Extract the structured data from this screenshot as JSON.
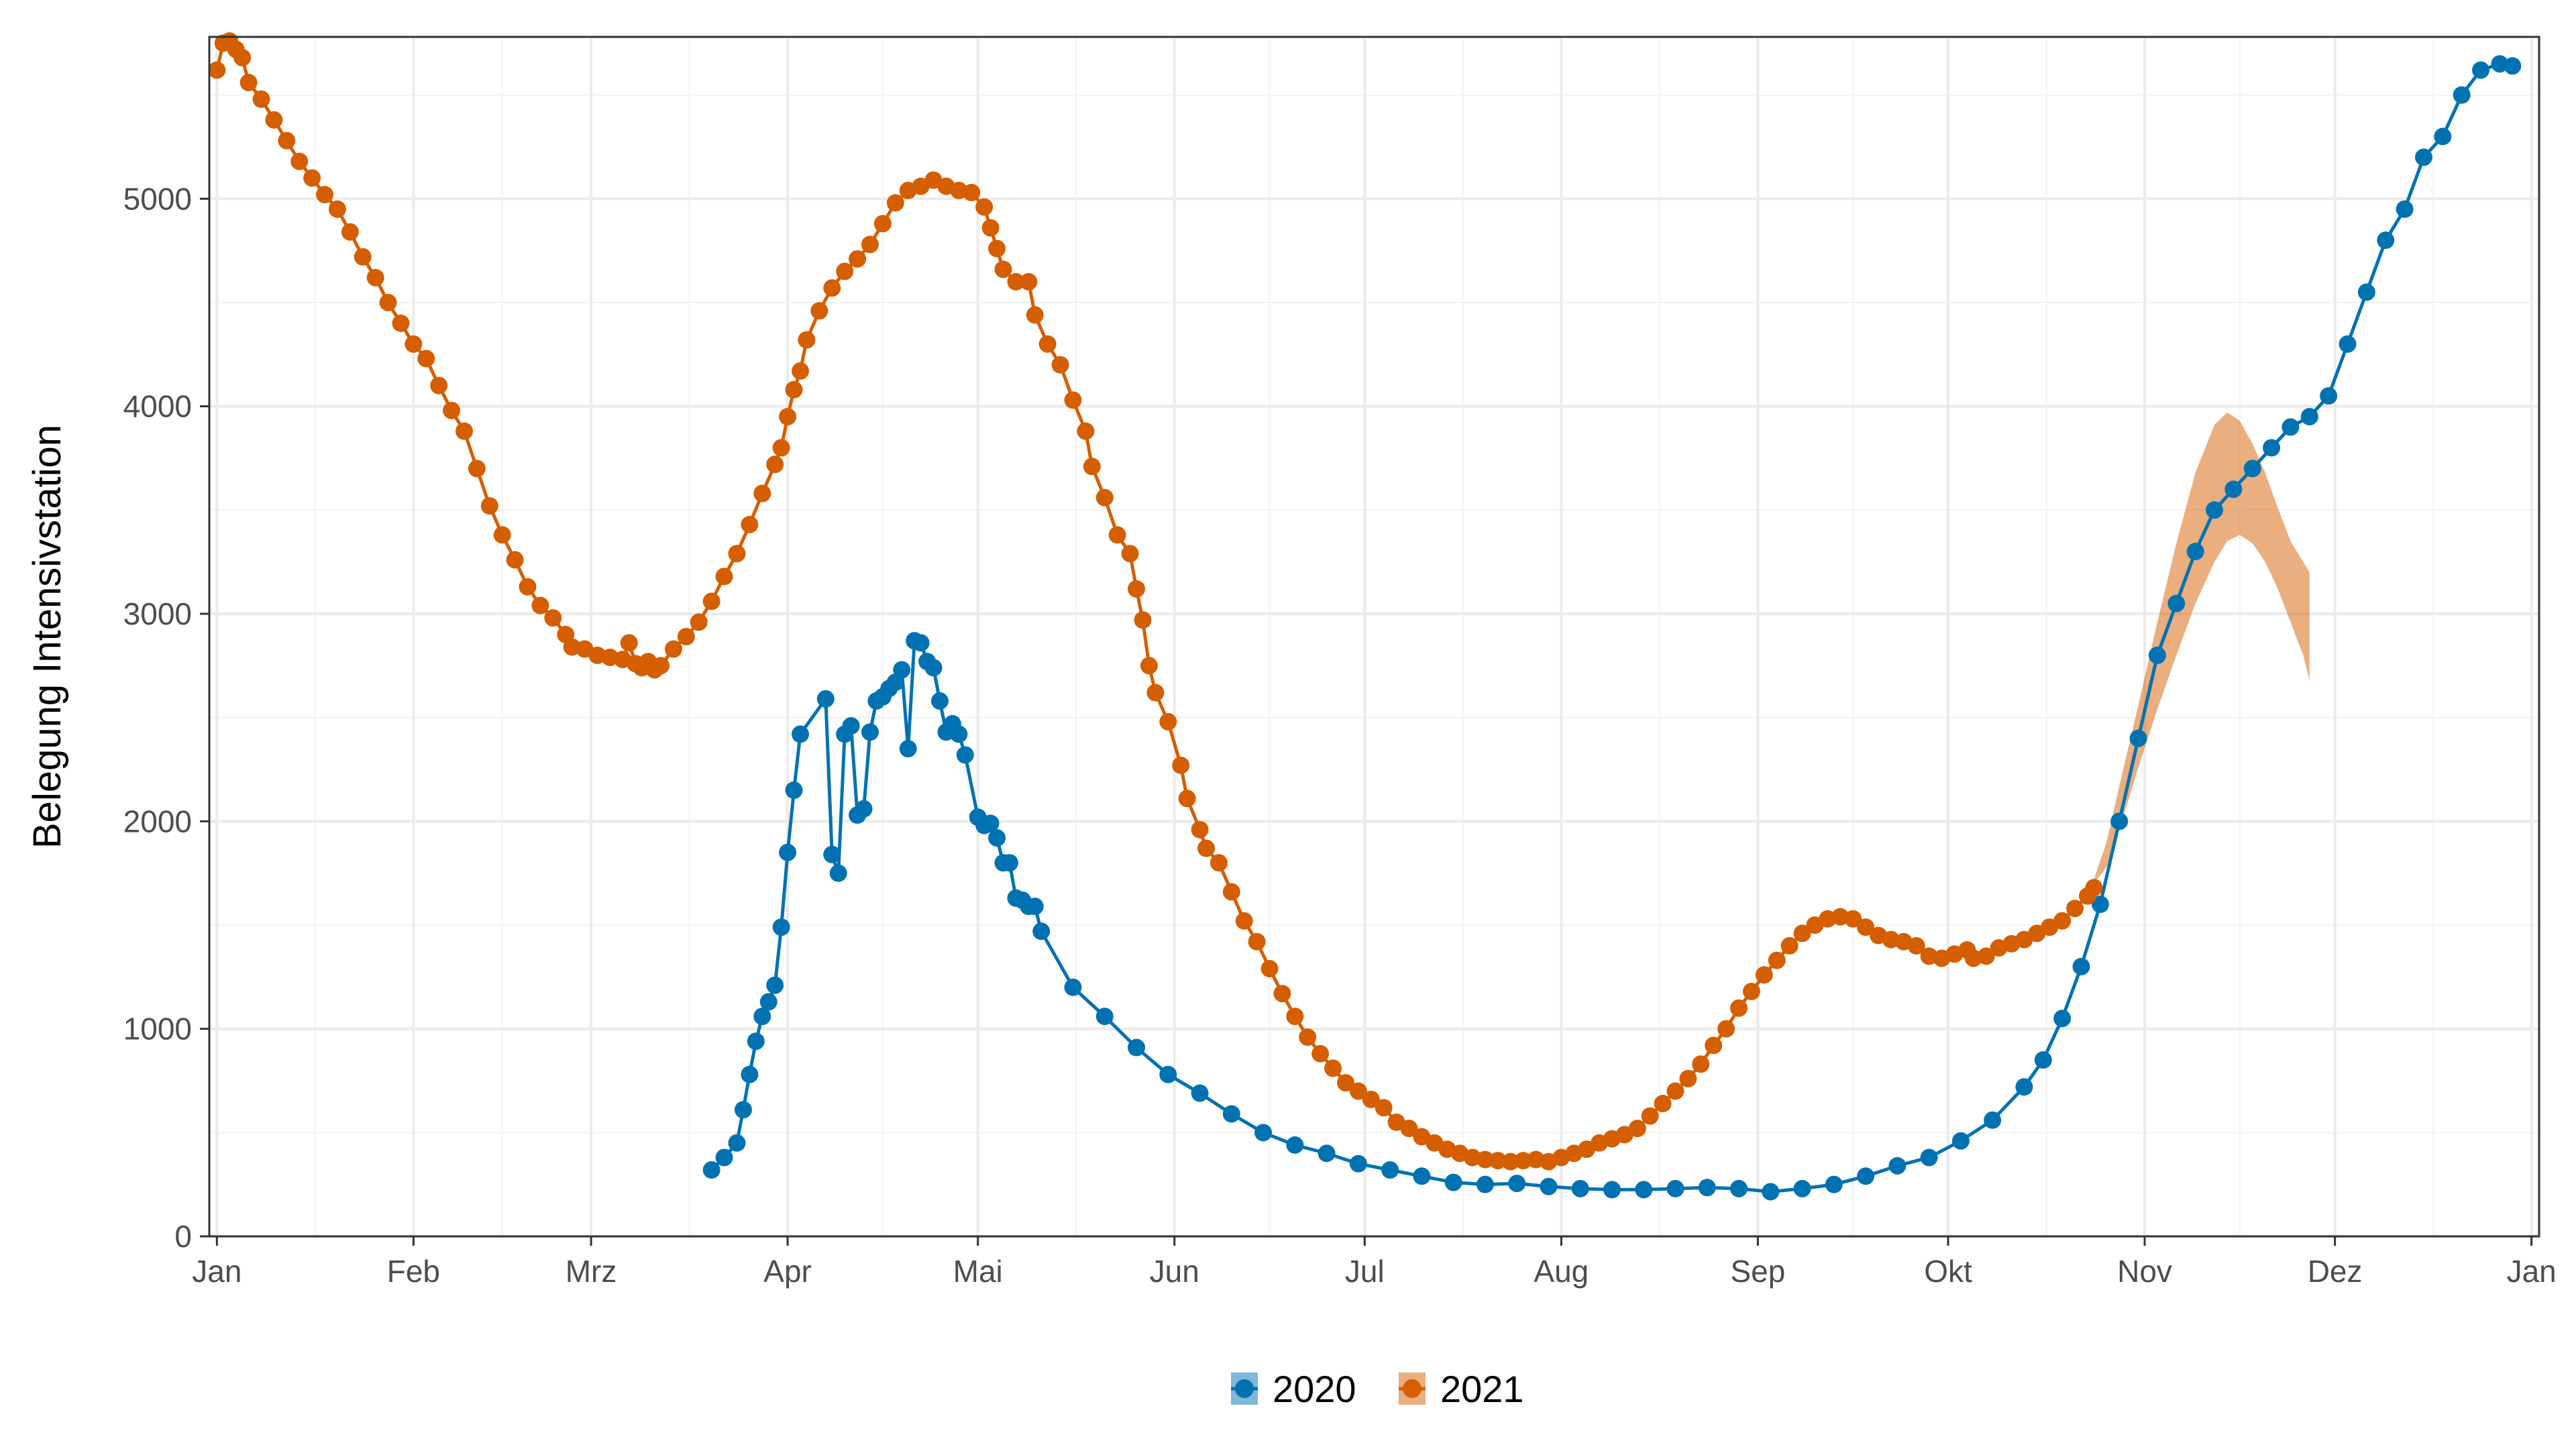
{
  "chart_data": {
    "type": "line",
    "title": "",
    "xlabel": "",
    "ylabel": "Belegung Intensivstation",
    "x_ticks": [
      "Jan",
      "Feb",
      "Mrz",
      "Apr",
      "Mai",
      "Jun",
      "Jul",
      "Aug",
      "Sep",
      "Okt",
      "Nov",
      "Dez",
      "Jan"
    ],
    "y_ticks": [
      "0",
      "1000",
      "2000",
      "3000",
      "4000",
      "5000"
    ],
    "ylim": [
      0,
      5780
    ],
    "xlim_days": [
      -1.2,
      366.2
    ],
    "grid": true,
    "legend_position": "bottom",
    "series": [
      {
        "name": "2020",
        "color": "#0072b2",
        "points": [
          [
            78,
            320
          ],
          [
            80,
            380
          ],
          [
            82,
            450
          ],
          [
            83,
            610
          ],
          [
            84,
            780
          ],
          [
            85,
            940
          ],
          [
            86,
            1060
          ],
          [
            87,
            1130
          ],
          [
            88,
            1210
          ],
          [
            89,
            1490
          ],
          [
            90,
            1850
          ],
          [
            91,
            2150
          ],
          [
            92,
            2420
          ],
          [
            96,
            2590
          ],
          [
            97,
            1840
          ],
          [
            98,
            1750
          ],
          [
            99,
            2420
          ],
          [
            100,
            2460
          ],
          [
            101,
            2030
          ],
          [
            102,
            2060
          ],
          [
            103,
            2430
          ],
          [
            104,
            2580
          ],
          [
            105,
            2600
          ],
          [
            106,
            2640
          ],
          [
            107,
            2670
          ],
          [
            108,
            2730
          ],
          [
            109,
            2350
          ],
          [
            110,
            2870
          ],
          [
            111,
            2860
          ],
          [
            112,
            2770
          ],
          [
            113,
            2740
          ],
          [
            114,
            2580
          ],
          [
            115,
            2430
          ],
          [
            116,
            2470
          ],
          [
            117,
            2420
          ],
          [
            118,
            2320
          ],
          [
            120,
            2020
          ],
          [
            121,
            1980
          ],
          [
            122,
            1990
          ],
          [
            123,
            1920
          ],
          [
            124,
            1800
          ],
          [
            125,
            1800
          ],
          [
            126,
            1630
          ],
          [
            127,
            1620
          ],
          [
            128,
            1590
          ],
          [
            129,
            1590
          ],
          [
            130,
            1470
          ],
          [
            135,
            1200
          ],
          [
            140,
            1060
          ],
          [
            145,
            910
          ],
          [
            150,
            780
          ],
          [
            155,
            690
          ],
          [
            160,
            590
          ],
          [
            165,
            500
          ],
          [
            170,
            440
          ],
          [
            175,
            400
          ],
          [
            180,
            350
          ],
          [
            185,
            320
          ],
          [
            190,
            290
          ],
          [
            195,
            260
          ],
          [
            200,
            250
          ],
          [
            205,
            255
          ],
          [
            210,
            240
          ],
          [
            215,
            230
          ],
          [
            220,
            225
          ],
          [
            225,
            225
          ],
          [
            230,
            230
          ],
          [
            235,
            235
          ],
          [
            240,
            230
          ],
          [
            245,
            215
          ],
          [
            250,
            230
          ],
          [
            255,
            250
          ],
          [
            260,
            290
          ],
          [
            265,
            340
          ],
          [
            270,
            380
          ],
          [
            275,
            460
          ],
          [
            280,
            560
          ],
          [
            285,
            720
          ],
          [
            288,
            850
          ],
          [
            291,
            1050
          ],
          [
            294,
            1300
          ],
          [
            297,
            1600
          ],
          [
            300,
            2000
          ],
          [
            303,
            2400
          ],
          [
            306,
            2800
          ],
          [
            309,
            3050
          ],
          [
            312,
            3300
          ],
          [
            315,
            3500
          ],
          [
            318,
            3600
          ],
          [
            321,
            3700
          ],
          [
            324,
            3800
          ],
          [
            327,
            3900
          ],
          [
            330,
            3950
          ],
          [
            333,
            4050
          ],
          [
            336,
            4300
          ],
          [
            339,
            4550
          ],
          [
            342,
            4800
          ],
          [
            345,
            4950
          ],
          [
            348,
            5200
          ],
          [
            351,
            5300
          ],
          [
            354,
            5500
          ],
          [
            357,
            5620
          ],
          [
            360,
            5650
          ],
          [
            362,
            5640
          ]
        ],
        "forecast_band": []
      },
      {
        "name": "2021",
        "color": "#d55e00",
        "points": [
          [
            0,
            5620
          ],
          [
            1,
            5750
          ],
          [
            2,
            5760
          ],
          [
            3,
            5720
          ],
          [
            4,
            5680
          ],
          [
            5,
            5560
          ],
          [
            7,
            5480
          ],
          [
            9,
            5380
          ],
          [
            11,
            5280
          ],
          [
            13,
            5180
          ],
          [
            15,
            5100
          ],
          [
            17,
            5020
          ],
          [
            19,
            4950
          ],
          [
            21,
            4840
          ],
          [
            23,
            4720
          ],
          [
            25,
            4620
          ],
          [
            27,
            4500
          ],
          [
            29,
            4400
          ],
          [
            31,
            4300
          ],
          [
            33,
            4230
          ],
          [
            35,
            4100
          ],
          [
            37,
            3980
          ],
          [
            39,
            3880
          ],
          [
            41,
            3700
          ],
          [
            43,
            3520
          ],
          [
            45,
            3380
          ],
          [
            47,
            3260
          ],
          [
            49,
            3130
          ],
          [
            51,
            3040
          ],
          [
            53,
            2980
          ],
          [
            55,
            2900
          ],
          [
            56,
            2840
          ],
          [
            58,
            2830
          ],
          [
            60,
            2800
          ],
          [
            62,
            2790
          ],
          [
            64,
            2780
          ],
          [
            65,
            2860
          ],
          [
            66,
            2760
          ],
          [
            67,
            2740
          ],
          [
            68,
            2770
          ],
          [
            69,
            2730
          ],
          [
            70,
            2750
          ],
          [
            72,
            2830
          ],
          [
            74,
            2890
          ],
          [
            76,
            2960
          ],
          [
            78,
            3060
          ],
          [
            80,
            3180
          ],
          [
            82,
            3290
          ],
          [
            84,
            3430
          ],
          [
            86,
            3580
          ],
          [
            88,
            3720
          ],
          [
            89,
            3800
          ],
          [
            90,
            3950
          ],
          [
            91,
            4080
          ],
          [
            92,
            4170
          ],
          [
            93,
            4320
          ],
          [
            95,
            4460
          ],
          [
            97,
            4570
          ],
          [
            99,
            4650
          ],
          [
            101,
            4710
          ],
          [
            103,
            4780
          ],
          [
            105,
            4880
          ],
          [
            107,
            4980
          ],
          [
            109,
            5040
          ],
          [
            111,
            5060
          ],
          [
            113,
            5090
          ],
          [
            115,
            5060
          ],
          [
            117,
            5040
          ],
          [
            119,
            5030
          ],
          [
            121,
            4960
          ],
          [
            122,
            4860
          ],
          [
            123,
            4760
          ],
          [
            124,
            4660
          ],
          [
            126,
            4600
          ],
          [
            128,
            4600
          ],
          [
            129,
            4440
          ],
          [
            131,
            4300
          ],
          [
            133,
            4200
          ],
          [
            135,
            4030
          ],
          [
            137,
            3880
          ],
          [
            138,
            3710
          ],
          [
            140,
            3560
          ],
          [
            142,
            3380
          ],
          [
            144,
            3290
          ],
          [
            145,
            3120
          ],
          [
            146,
            2970
          ],
          [
            147,
            2750
          ],
          [
            148,
            2620
          ],
          [
            150,
            2480
          ],
          [
            152,
            2270
          ],
          [
            153,
            2110
          ],
          [
            155,
            1960
          ],
          [
            156,
            1870
          ],
          [
            158,
            1800
          ],
          [
            160,
            1660
          ],
          [
            162,
            1520
          ],
          [
            164,
            1420
          ],
          [
            166,
            1290
          ],
          [
            168,
            1170
          ],
          [
            170,
            1060
          ],
          [
            172,
            960
          ],
          [
            174,
            880
          ],
          [
            176,
            810
          ],
          [
            178,
            740
          ],
          [
            180,
            700
          ],
          [
            182,
            660
          ],
          [
            184,
            620
          ],
          [
            186,
            550
          ],
          [
            188,
            520
          ],
          [
            190,
            480
          ],
          [
            192,
            450
          ],
          [
            194,
            420
          ],
          [
            196,
            400
          ],
          [
            198,
            380
          ],
          [
            200,
            370
          ],
          [
            202,
            365
          ],
          [
            204,
            360
          ],
          [
            206,
            365
          ],
          [
            208,
            370
          ],
          [
            210,
            360
          ],
          [
            212,
            380
          ],
          [
            214,
            400
          ],
          [
            216,
            420
          ],
          [
            218,
            450
          ],
          [
            220,
            470
          ],
          [
            222,
            490
          ],
          [
            224,
            520
          ],
          [
            226,
            580
          ],
          [
            228,
            640
          ],
          [
            230,
            700
          ],
          [
            232,
            760
          ],
          [
            234,
            830
          ],
          [
            236,
            920
          ],
          [
            238,
            1000
          ],
          [
            240,
            1100
          ],
          [
            242,
            1180
          ],
          [
            244,
            1260
          ],
          [
            246,
            1330
          ],
          [
            248,
            1400
          ],
          [
            250,
            1460
          ],
          [
            252,
            1500
          ],
          [
            254,
            1530
          ],
          [
            256,
            1540
          ],
          [
            258,
            1530
          ],
          [
            260,
            1490
          ],
          [
            262,
            1450
          ],
          [
            264,
            1430
          ],
          [
            266,
            1420
          ],
          [
            268,
            1400
          ],
          [
            270,
            1350
          ],
          [
            272,
            1340
          ],
          [
            274,
            1360
          ],
          [
            276,
            1380
          ],
          [
            277,
            1340
          ],
          [
            279,
            1350
          ],
          [
            281,
            1390
          ],
          [
            283,
            1410
          ],
          [
            285,
            1430
          ],
          [
            287,
            1460
          ],
          [
            289,
            1490
          ],
          [
            291,
            1520
          ],
          [
            293,
            1580
          ],
          [
            295,
            1640
          ],
          [
            296,
            1680
          ]
        ],
        "forecast_band": [
          [
            296,
            1700,
            1720
          ],
          [
            298,
            1780,
            1900
          ],
          [
            300,
            1960,
            2170
          ],
          [
            303,
            2260,
            2560
          ],
          [
            306,
            2540,
            2960
          ],
          [
            309,
            2800,
            3340
          ],
          [
            312,
            3050,
            3680
          ],
          [
            315,
            3250,
            3910
          ],
          [
            317,
            3350,
            3970
          ],
          [
            319,
            3380,
            3930
          ],
          [
            321,
            3340,
            3820
          ],
          [
            323,
            3250,
            3680
          ],
          [
            325,
            3120,
            3510
          ],
          [
            327,
            2960,
            3350
          ],
          [
            329,
            2800,
            3250
          ],
          [
            330,
            2680,
            3200
          ]
        ]
      }
    ]
  }
}
